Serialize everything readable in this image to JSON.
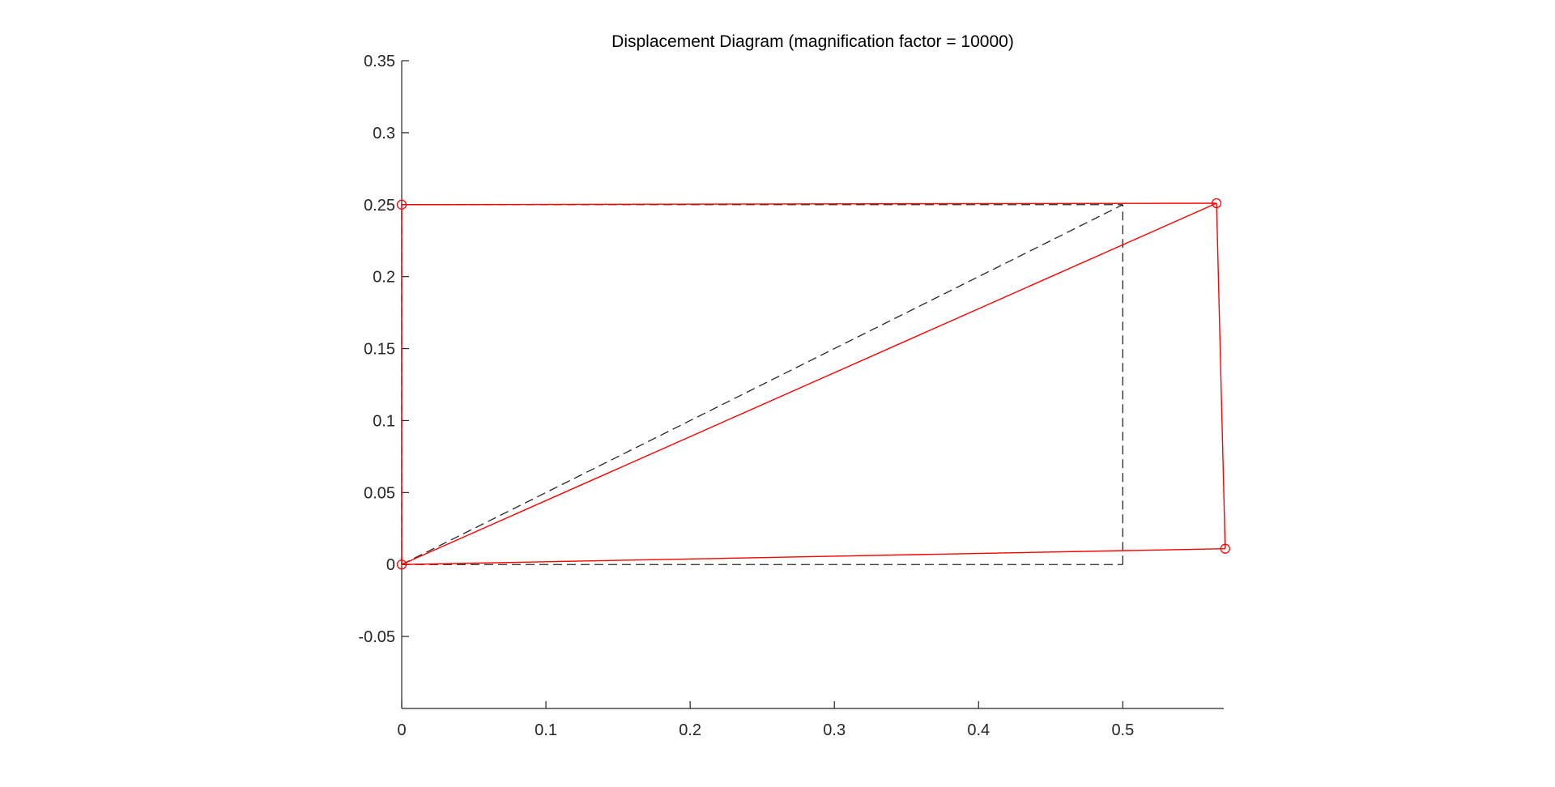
{
  "chart_data": {
    "type": "line",
    "title": "Displacement Diagram (magnification factor = 10000)",
    "xlabel": "",
    "ylabel": "",
    "xlim": [
      0,
      0.57
    ],
    "ylim": [
      -0.1,
      0.35
    ],
    "grid": false,
    "x_ticks": [
      0,
      0.1,
      0.2,
      0.3,
      0.4,
      0.5
    ],
    "x_tick_labels": [
      "0",
      "0.1",
      "0.2",
      "0.3",
      "0.4",
      "0.5"
    ],
    "y_ticks": [
      -0.05,
      0,
      0.05,
      0.1,
      0.15,
      0.2,
      0.25,
      0.3,
      0.35
    ],
    "y_tick_labels": [
      "-0.05",
      "0",
      "0.05",
      "0.1",
      "0.15",
      "0.2",
      "0.25",
      "0.3",
      "0.35"
    ],
    "colors": {
      "original": "#000000",
      "deformed": "#ff0000",
      "axis": "#262626"
    },
    "series": [
      {
        "style": "dashed",
        "color": "#000000",
        "segments": [
          [
            [
              0,
              0
            ],
            [
              0.5,
              0
            ]
          ],
          [
            [
              0.5,
              0
            ],
            [
              0.5,
              0.25
            ]
          ],
          [
            [
              0,
              0.25
            ],
            [
              0.5,
              0.25
            ]
          ],
          [
            [
              0,
              0
            ],
            [
              0.5,
              0.25
            ]
          ],
          [
            [
              0,
              0
            ],
            [
              0,
              0.25
            ]
          ]
        ]
      },
      {
        "style": "solid",
        "color": "#ff0000",
        "marker": "circle",
        "nodes": [
          [
            0,
            0
          ],
          [
            0.571,
            0.011
          ],
          [
            0.565,
            0.251
          ],
          [
            0,
            0.25
          ]
        ],
        "segments": [
          [
            [
              0,
              0
            ],
            [
              0.571,
              0.011
            ]
          ],
          [
            [
              0.571,
              0.011
            ],
            [
              0.565,
              0.251
            ]
          ],
          [
            [
              0,
              0.25
            ],
            [
              0.565,
              0.251
            ]
          ],
          [
            [
              0,
              0
            ],
            [
              0.565,
              0.251
            ]
          ],
          [
            [
              0,
              0
            ],
            [
              0,
              0.25
            ]
          ]
        ]
      }
    ]
  }
}
